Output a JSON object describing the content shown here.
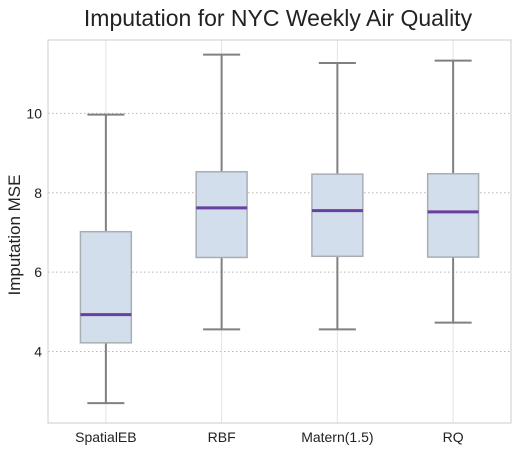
{
  "chart_data": {
    "type": "boxplot",
    "title": "Imputation for NYC Weekly Air Quality",
    "xlabel": "",
    "ylabel": "Imputation MSE",
    "categories": [
      "SpatialEB",
      "RBF",
      "Matern(1.5)",
      "RQ"
    ],
    "boxes": [
      {
        "name": "SpatialEB",
        "whisker_low": 2.7,
        "q1": 4.22,
        "median": 4.93,
        "q3": 7.02,
        "whisker_high": 9.97
      },
      {
        "name": "RBF",
        "whisker_low": 4.56,
        "q1": 6.37,
        "median": 7.62,
        "q3": 8.53,
        "whisker_high": 11.48
      },
      {
        "name": "Matern(1.5)",
        "whisker_low": 4.56,
        "q1": 6.4,
        "median": 7.55,
        "q3": 8.47,
        "whisker_high": 11.27
      },
      {
        "name": "RQ",
        "whisker_low": 4.73,
        "q1": 6.38,
        "median": 7.52,
        "q3": 8.48,
        "whisker_high": 11.33
      }
    ],
    "yticks": [
      4,
      6,
      8,
      10
    ],
    "ylim": [
      2.2,
      11.85
    ],
    "grid": true,
    "colors": {
      "box_fill": "#d2deeb",
      "box_edge": "#a9aeb4",
      "whisker": "#808080",
      "median": "#6a3fa0",
      "grid": "#b8b8b8",
      "frame": "#cccccc"
    }
  }
}
